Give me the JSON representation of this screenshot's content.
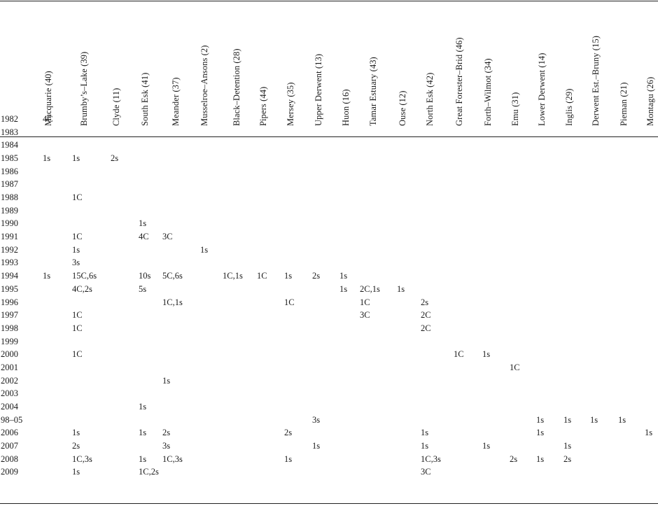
{
  "columns": [
    "Macquarie (40)",
    "Brumby’s–Lake (39)",
    "Clyde (11)",
    "South Esk (41)",
    "Meander (37)",
    "Musselroe–Ansons (2)",
    "Black–Detention (28)",
    "Pipers (44)",
    "Mersey (35)",
    "Upper Derwent (13)",
    "Huon (16)",
    "Tamar Estuary (43)",
    "Ouse (12)",
    "North Esk (42)",
    "Great Forester–Brid (46)",
    "Forth–Wilmot (34)",
    "Emu (31)",
    "Lower Derwent (14)",
    "Inglis (29)",
    "Derwent Est.–Bruny (15)",
    "Pieman (21)",
    "Montagu (26)"
  ],
  "rows": [
    {
      "year": "1982",
      "cells": [
        [
          "Macquarie (40)",
          "4C"
        ]
      ]
    },
    {
      "year": "1983",
      "cells": []
    },
    {
      "year": "1984",
      "cells": []
    },
    {
      "year": "1985",
      "cells": [
        [
          "Macquarie (40)",
          "1s"
        ],
        [
          "Brumby’s–Lake (39)",
          "1s"
        ],
        [
          "Clyde (11)",
          "2s"
        ]
      ]
    },
    {
      "year": "1986",
      "cells": []
    },
    {
      "year": "1987",
      "cells": []
    },
    {
      "year": "1988",
      "cells": [
        [
          "Brumby’s–Lake (39)",
          "1C"
        ]
      ]
    },
    {
      "year": "1989",
      "cells": []
    },
    {
      "year": "1990",
      "cells": [
        [
          "South Esk (41)",
          "1s"
        ]
      ]
    },
    {
      "year": "1991",
      "cells": [
        [
          "Brumby’s–Lake (39)",
          "1C"
        ],
        [
          "South Esk (41)",
          "4C"
        ],
        [
          "Meander (37)",
          "3C"
        ]
      ]
    },
    {
      "year": "1992",
      "cells": [
        [
          "Brumby’s–Lake (39)",
          "1s"
        ],
        [
          "Musselroe–Ansons (2)",
          "1s"
        ]
      ]
    },
    {
      "year": "1993",
      "cells": [
        [
          "Brumby’s–Lake (39)",
          "3s"
        ]
      ]
    },
    {
      "year": "1994",
      "cells": [
        [
          "Macquarie (40)",
          "1s"
        ],
        [
          "Brumby’s–Lake (39)",
          "15C,6s"
        ],
        [
          "South Esk (41)",
          "10s"
        ],
        [
          "Meander (37)",
          "5C,6s"
        ],
        [
          "Black–Detention (28)",
          "1C,1s"
        ],
        [
          "Pipers (44)",
          "1C"
        ],
        [
          "Mersey (35)",
          "1s"
        ],
        [
          "Upper Derwent (13)",
          "2s"
        ],
        [
          "Huon (16)",
          "1s"
        ]
      ]
    },
    {
      "year": "1995",
      "cells": [
        [
          "Brumby’s–Lake (39)",
          "4C,2s"
        ],
        [
          "South Esk (41)",
          "5s"
        ],
        [
          "Huon (16)",
          "1s"
        ],
        [
          "Tamar Estuary (43)",
          "2C,1s"
        ],
        [
          "Ouse (12)",
          "1s"
        ]
      ]
    },
    {
      "year": "1996",
      "cells": [
        [
          "Meander (37)",
          "1C,1s"
        ],
        [
          "Mersey (35)",
          "1C"
        ],
        [
          "Tamar Estuary (43)",
          "1C"
        ],
        [
          "North Esk (42)",
          "2s"
        ]
      ]
    },
    {
      "year": "1997",
      "cells": [
        [
          "Brumby’s–Lake (39)",
          "1C"
        ],
        [
          "Tamar Estuary (43)",
          "3C"
        ],
        [
          "North Esk (42)",
          "2C"
        ]
      ]
    },
    {
      "year": "1998",
      "cells": [
        [
          "Brumby’s–Lake (39)",
          "1C"
        ],
        [
          "North Esk (42)",
          "2C"
        ]
      ]
    },
    {
      "year": "1999",
      "cells": []
    },
    {
      "year": "2000",
      "cells": [
        [
          "Brumby’s–Lake (39)",
          "1C"
        ],
        [
          "Great Forester–Brid (46)",
          "1C"
        ],
        [
          "Forth–Wilmot (34)",
          "1s"
        ]
      ]
    },
    {
      "year": "2001",
      "cells": [
        [
          "Emu (31)",
          "1C"
        ]
      ]
    },
    {
      "year": "2002",
      "cells": [
        [
          "Meander (37)",
          "1s"
        ]
      ]
    },
    {
      "year": "2003",
      "cells": []
    },
    {
      "year": "2004",
      "cells": [
        [
          "South Esk (41)",
          "1s"
        ]
      ]
    },
    {
      "year": "98–05",
      "cells": [
        [
          "Upper Derwent (13)",
          "3s"
        ],
        [
          "Lower Derwent (14)",
          "1s"
        ],
        [
          "Inglis (29)",
          "1s"
        ],
        [
          "Derwent Est.–Bruny (15)",
          "1s"
        ],
        [
          "Pieman (21)",
          "1s"
        ]
      ]
    },
    {
      "year": "2006",
      "cells": [
        [
          "Brumby’s–Lake (39)",
          "1s"
        ],
        [
          "South Esk (41)",
          "1s"
        ],
        [
          "Meander (37)",
          "2s"
        ],
        [
          "Mersey (35)",
          "2s"
        ],
        [
          "North Esk (42)",
          "1s"
        ],
        [
          "Lower Derwent (14)",
          "1s"
        ],
        [
          "Montagu (26)",
          "1s"
        ]
      ]
    },
    {
      "year": "2007",
      "cells": [
        [
          "Brumby’s–Lake (39)",
          "2s"
        ],
        [
          "Meander (37)",
          "3s"
        ],
        [
          "Upper Derwent (13)",
          "1s"
        ],
        [
          "North Esk (42)",
          "1s"
        ],
        [
          "Forth–Wilmot (34)",
          "1s"
        ],
        [
          "Inglis (29)",
          "1s"
        ]
      ]
    },
    {
      "year": "2008",
      "cells": [
        [
          "Brumby’s–Lake (39)",
          "1C,3s"
        ],
        [
          "South Esk (41)",
          "1s"
        ],
        [
          "Meander (37)",
          "1C,3s"
        ],
        [
          "Mersey (35)",
          "1s"
        ],
        [
          "North Esk (42)",
          "1C,3s"
        ],
        [
          "Emu (31)",
          "2s"
        ],
        [
          "Lower Derwent (14)",
          "1s"
        ],
        [
          "Inglis (29)",
          "2s"
        ]
      ]
    },
    {
      "year": "2009",
      "cells": [
        [
          "Brumby’s–Lake (39)",
          "1s"
        ],
        [
          "South Esk (41)",
          "1C,2s"
        ],
        [
          "North Esk (42)",
          "3C"
        ]
      ]
    }
  ]
}
